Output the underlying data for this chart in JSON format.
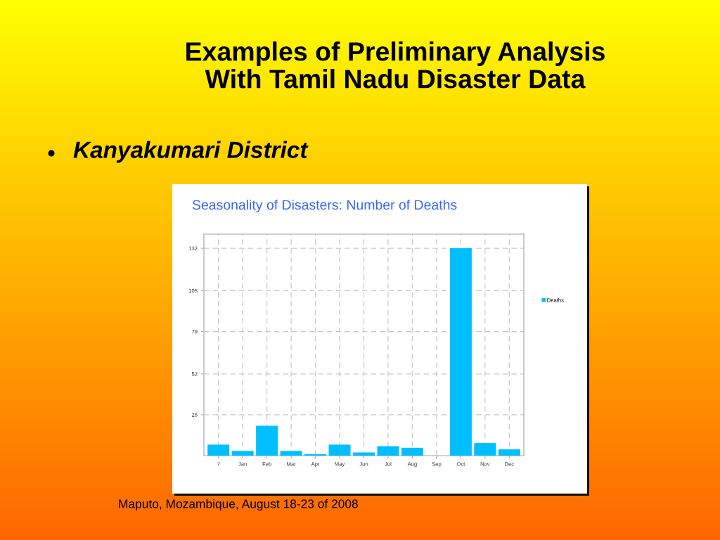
{
  "chart_data": {
    "type": "bar",
    "title": "Seasonality of Disasters: Number of Deaths",
    "subtitle": "Kanyakumari District",
    "annotations": [
      "Examples of Preliminary Analysis\nWith Tamil Nadu Disaster Data",
      "Maputo, Mozambique, August 18-23 of 2008"
    ],
    "categories": [
      "?",
      "Jan",
      "Feb",
      "Mar",
      "Apr",
      "May",
      "Jun",
      "Jul",
      "Aug",
      "Sep",
      "Oct",
      "Nov",
      "Dec"
    ],
    "series": [
      {
        "name": "Deaths",
        "color": "#00bfff",
        "values": [
          7,
          3,
          19,
          3,
          1,
          7,
          2,
          6,
          5,
          0,
          132,
          8,
          4
        ]
      }
    ],
    "ylim": [
      0,
      141
    ],
    "yticks": [
      26,
      52,
      79,
      105,
      132
    ],
    "grid": true,
    "legend": "right"
  }
}
